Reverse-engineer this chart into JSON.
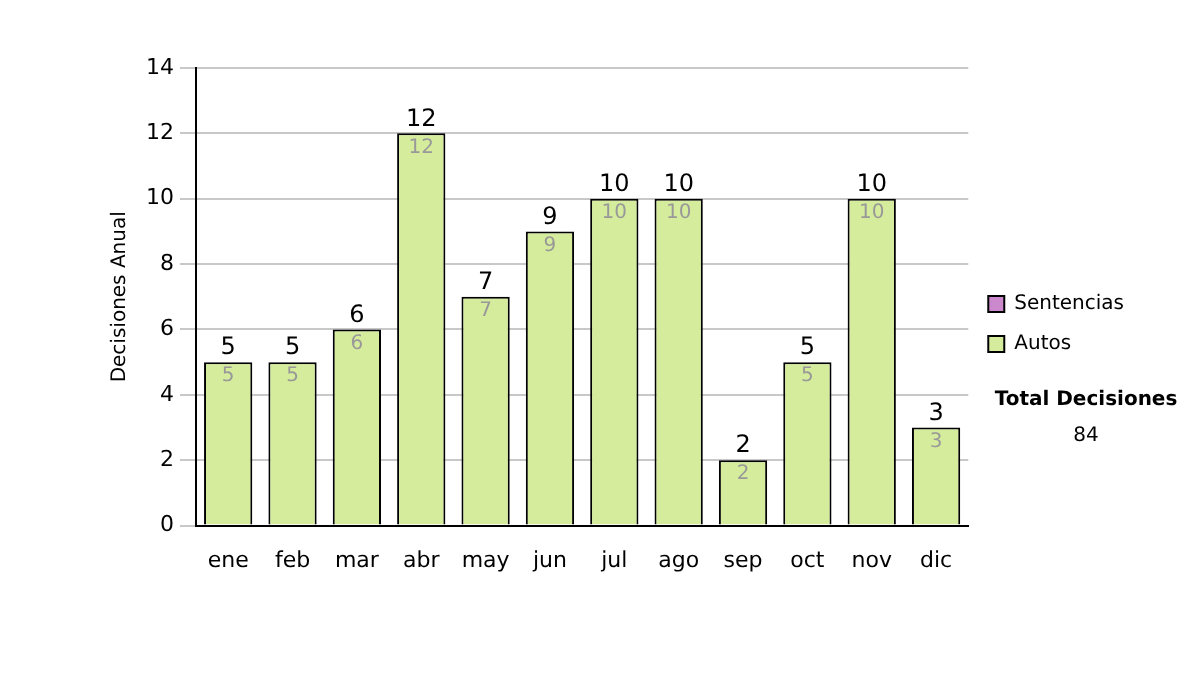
{
  "chart_data": {
    "type": "bar",
    "ylabel": "Decisiones Anual",
    "categories": [
      "ene",
      "feb",
      "mar",
      "abr",
      "may",
      "jun",
      "jul",
      "ago",
      "sep",
      "oct",
      "nov",
      "dic"
    ],
    "series": [
      {
        "name": "Autos",
        "color": "#d4ec9c",
        "values": [
          5,
          5,
          6,
          12,
          7,
          9,
          10,
          10,
          2,
          5,
          10,
          3
        ],
        "value_labels": [
          "5",
          "5",
          "6",
          "12",
          "7",
          "9",
          "10",
          "10",
          "2",
          "5",
          "10",
          "3"
        ]
      },
      {
        "name": "Sentencias",
        "color": "#cc88cc",
        "values": [
          0,
          0,
          0,
          0,
          0,
          0,
          0,
          0,
          0,
          0,
          0,
          0
        ]
      }
    ],
    "stacked": true,
    "totals": [
      "5",
      "5",
      "6",
      "12",
      "7",
      "9",
      "10",
      "10",
      "2",
      "5",
      "10",
      "3"
    ],
    "ylim": [
      0,
      14
    ],
    "yticks": [
      0,
      2,
      4,
      6,
      8,
      10,
      12,
      14
    ],
    "grid": "y",
    "legend": "right",
    "annotations": [
      "Total Decisiones",
      "84"
    ]
  }
}
